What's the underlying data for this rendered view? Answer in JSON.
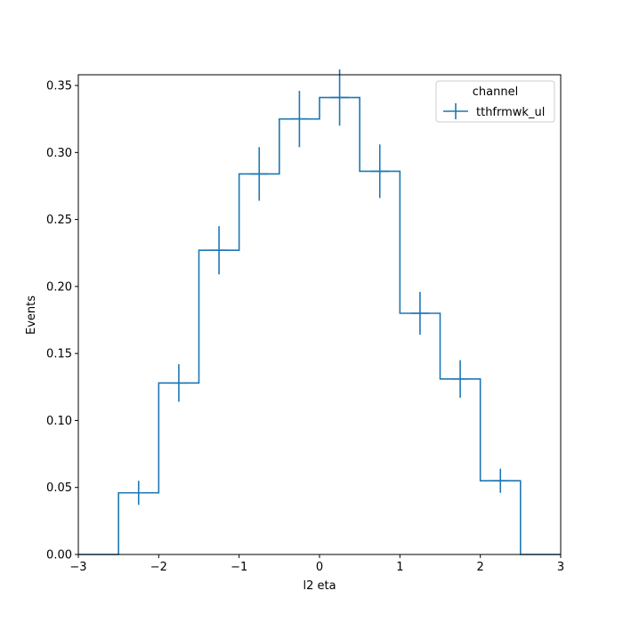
{
  "chart_data": {
    "type": "histogram-step",
    "xlabel": "l2 eta",
    "ylabel": "Events",
    "xlim": [
      -3,
      3
    ],
    "ylim": [
      0,
      0.358
    ],
    "xticks": [
      -3,
      -2,
      -1,
      0,
      1,
      2,
      3
    ],
    "xtick_labels": [
      "−3",
      "−2",
      "−1",
      "0",
      "1",
      "2",
      "3"
    ],
    "yticks": [
      0.0,
      0.05,
      0.1,
      0.15,
      0.2,
      0.25,
      0.3,
      0.35
    ],
    "ytick_labels": [
      "0.00",
      "0.05",
      "0.10",
      "0.15",
      "0.20",
      "0.25",
      "0.30",
      "0.35"
    ],
    "grid": false,
    "legend": {
      "title": "channel",
      "position": "top-right"
    },
    "bin_edges": [
      -3.0,
      -2.5,
      -2.0,
      -1.5,
      -1.0,
      -0.5,
      0.0,
      0.5,
      1.0,
      1.5,
      2.0,
      2.5,
      3.0
    ],
    "series": [
      {
        "name": "tthfrmwk_ul",
        "color": "#1f77b4",
        "values": [
          0.0,
          0.046,
          0.128,
          0.227,
          0.284,
          0.325,
          0.341,
          0.286,
          0.18,
          0.131,
          0.055,
          0.0
        ],
        "errors": [
          0.0,
          0.009,
          0.014,
          0.018,
          0.02,
          0.021,
          0.021,
          0.02,
          0.016,
          0.014,
          0.009,
          0.0
        ]
      }
    ]
  }
}
